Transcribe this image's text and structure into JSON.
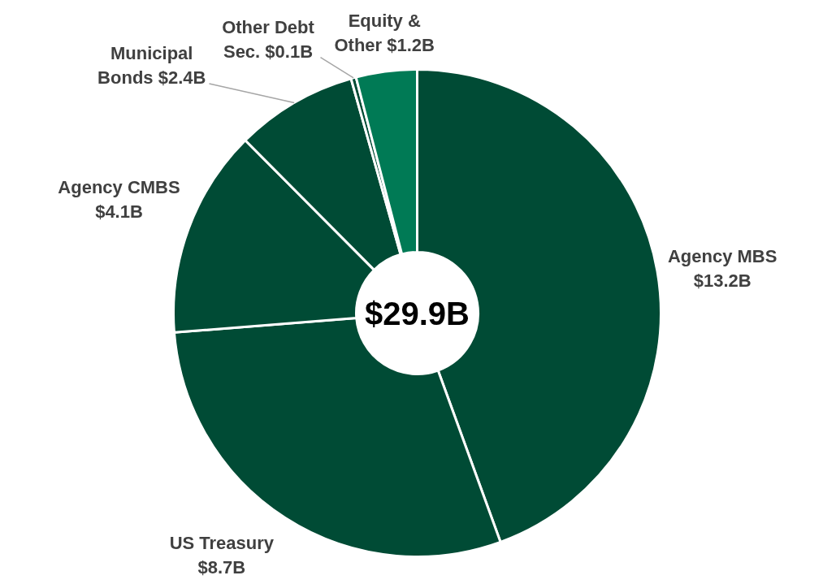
{
  "chart_data": {
    "type": "donut",
    "categories": [
      "Agency MBS",
      "US Treasury",
      "Agency CMBS",
      "Municipal Bonds",
      "Other Debt Sec.",
      "Equity & Other"
    ],
    "values": [
      13.2,
      8.7,
      4.1,
      2.4,
      0.1,
      1.2
    ],
    "colors": [
      "#004b35",
      "#004b35",
      "#004b35",
      "#004b35",
      "#004b35",
      "#007a55"
    ],
    "value_labels": [
      "$13.2B",
      "$8.7B",
      "$4.1B",
      "$2.4B",
      "$0.1B",
      "$1.2B"
    ],
    "annotations": [
      "$29.9B"
    ]
  }
}
